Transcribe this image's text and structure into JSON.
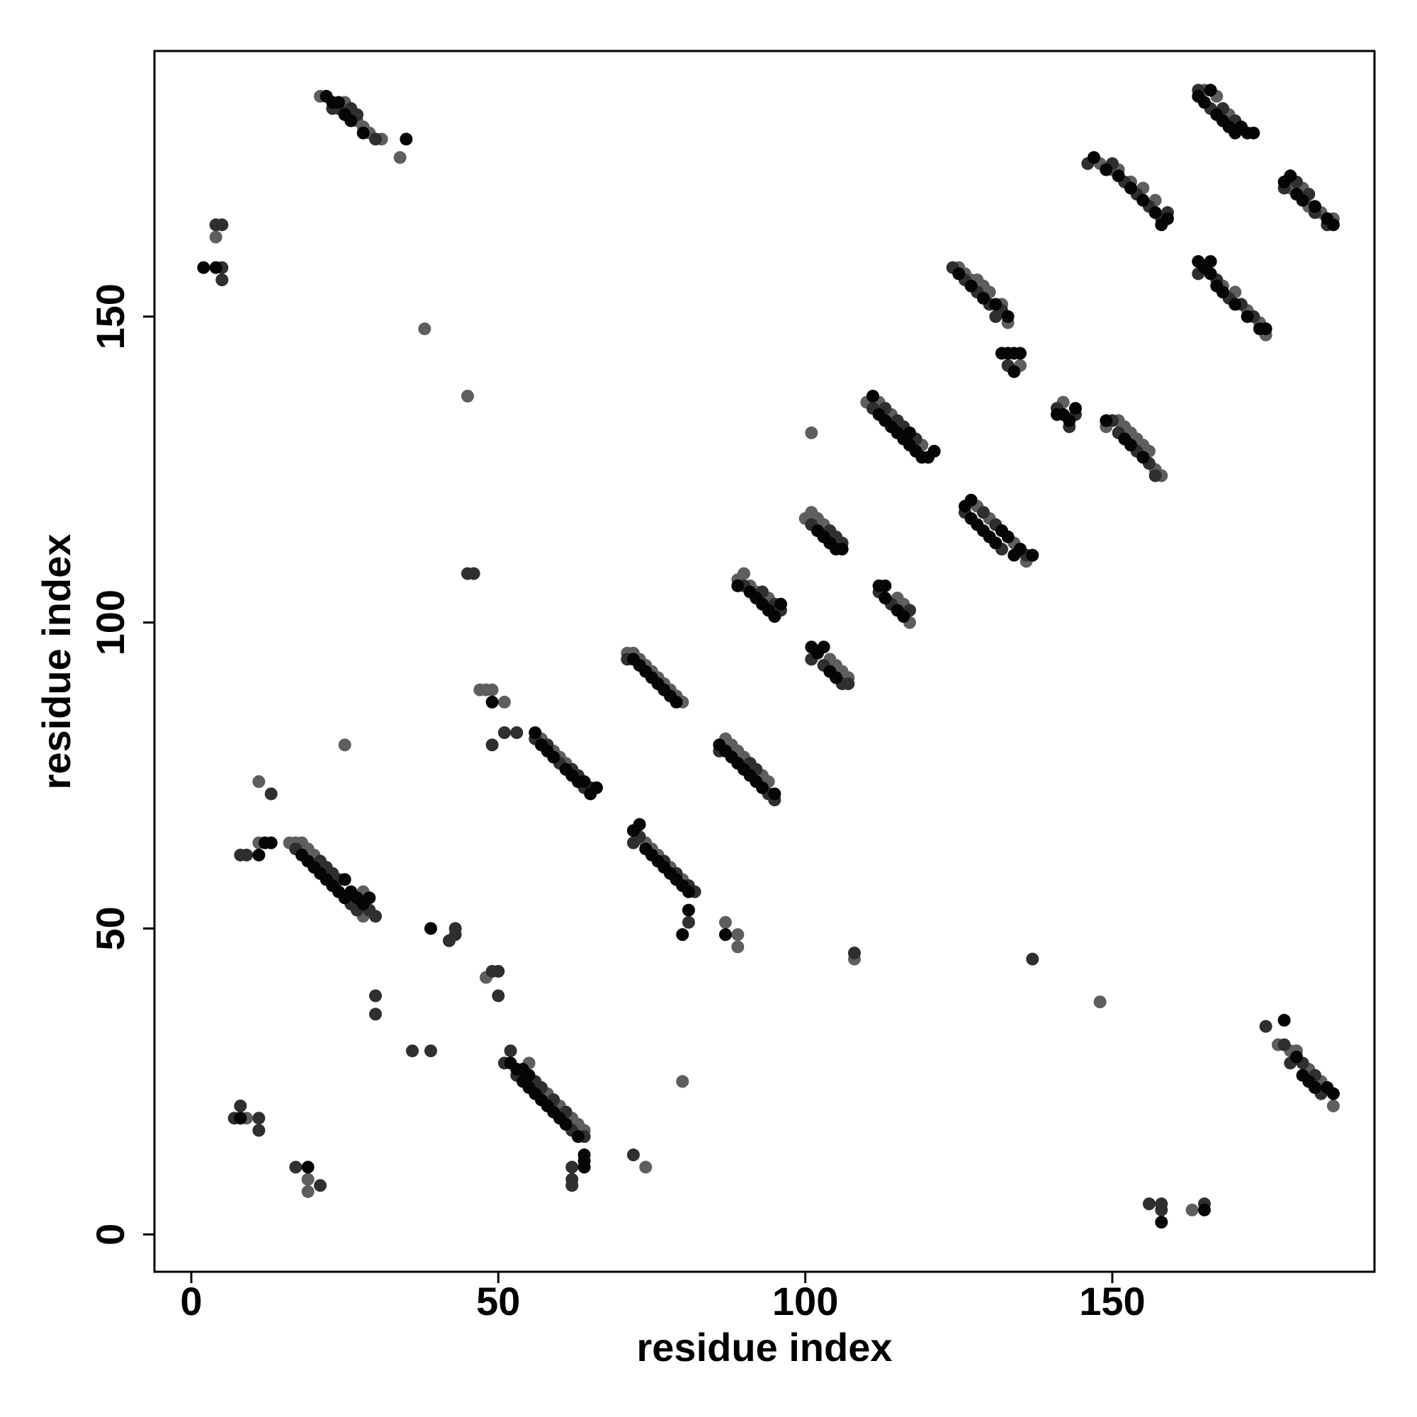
{
  "chart_data": {
    "type": "scatter",
    "x_label": "residue index",
    "y_label": "residue index",
    "xlim": [
      -6,
      192.7
    ],
    "ylim": [
      -6.1,
      193.4
    ],
    "xticks": [
      0,
      50,
      100,
      150
    ],
    "yticks": [
      0,
      50,
      100,
      150
    ],
    "grid": false,
    "series": [
      {
        "color": "#5e5e5e",
        "x": [
          21,
          25,
          27,
          28,
          29,
          31,
          34,
          4,
          38,
          45,
          47,
          48,
          49,
          51,
          57,
          59,
          60,
          61,
          71,
          72,
          73,
          74,
          75,
          76,
          77,
          78,
          79,
          80,
          74,
          75,
          76,
          78,
          80,
          87,
          89,
          89,
          87,
          88,
          89,
          90,
          93,
          94,
          89,
          90,
          91,
          92,
          94,
          100,
          101,
          102,
          103,
          104,
          105,
          106,
          107,
          101,
          108,
          110,
          112,
          114,
          119,
          115,
          116,
          117,
          128,
          130,
          134,
          136,
          125,
          126,
          127,
          128,
          129,
          130,
          132,
          133,
          135,
          142,
          148,
          149,
          151,
          152,
          153,
          154,
          155,
          156,
          157,
          158,
          148,
          150,
          151,
          153,
          155,
          157,
          165,
          167,
          169,
          168,
          170,
          172,
          174,
          175,
          179,
          181,
          182,
          184,
          186,
          177,
          179,
          180,
          182,
          184,
          186,
          163,
          16,
          17,
          18,
          19,
          20,
          28,
          28,
          11,
          11,
          25,
          9,
          19,
          19,
          48,
          55,
          58,
          60,
          62,
          63,
          64,
          74,
          80
        ],
        "values": [
          186,
          185,
          182,
          181,
          180,
          179,
          176,
          163,
          148,
          137,
          89,
          89,
          89,
          87,
          81,
          79,
          78,
          77,
          95,
          95,
          94,
          93,
          92,
          91,
          90,
          89,
          88,
          87,
          64,
          63,
          62,
          60,
          58,
          51,
          49,
          47,
          81,
          80,
          79,
          78,
          75,
          74,
          107,
          108,
          106,
          105,
          104,
          117,
          118,
          117,
          116,
          94,
          93,
          92,
          91,
          131,
          45,
          136,
          136,
          134,
          129,
          104,
          103,
          100,
          119,
          117,
          113,
          110,
          158,
          157,
          156,
          156,
          155,
          154,
          152,
          149,
          142,
          136,
          38,
          132,
          133,
          132,
          131,
          130,
          129,
          128,
          125,
          124,
          175,
          174,
          174,
          172,
          171,
          169,
          187,
          186,
          183,
          155,
          154,
          151,
          149,
          147,
          171,
          171,
          168,
          167,
          166,
          31,
          30,
          30,
          27,
          25,
          21,
          4,
          64,
          64,
          64,
          63,
          62,
          56,
          52,
          64,
          74,
          80,
          19,
          9,
          7,
          42,
          28,
          23,
          21,
          19,
          18,
          17,
          11,
          25
        ]
      },
      {
        "color": "#2f2f2f",
        "x": [
          23,
          24,
          26,
          27,
          30,
          5,
          5,
          4,
          5,
          45,
          46,
          49,
          51,
          53,
          56,
          58,
          60,
          62,
          63,
          64,
          65,
          71,
          72,
          73,
          77,
          79,
          81,
          82,
          81,
          86,
          91,
          92,
          94,
          95,
          90,
          93,
          95,
          96,
          101,
          104,
          105,
          106,
          101,
          103,
          106,
          107,
          108,
          111,
          113,
          115,
          116,
          118,
          112,
          114,
          117,
          126,
          129,
          131,
          132,
          136,
          124,
          126,
          128,
          130,
          132,
          131,
          133,
          141,
          143,
          144,
          137,
          150,
          151,
          154,
          156,
          157,
          146,
          150,
          152,
          154,
          156,
          158,
          159,
          164,
          166,
          168,
          170,
          164,
          167,
          169,
          171,
          173,
          178,
          180,
          182,
          183,
          185,
          175,
          178,
          179,
          181,
          183,
          184,
          156,
          158,
          158,
          165,
          17,
          21,
          22,
          23,
          24,
          26,
          27,
          29,
          30,
          8,
          9,
          13,
          7,
          8,
          11,
          11,
          17,
          21,
          30,
          30,
          36,
          39,
          42,
          43,
          43,
          49,
          50,
          50,
          51,
          52,
          53,
          56,
          57,
          59,
          61,
          62,
          64,
          62,
          62,
          62,
          72
        ],
        "values": [
          184,
          184,
          184,
          183,
          179,
          158,
          156,
          165,
          165,
          108,
          108,
          80,
          82,
          82,
          81,
          80,
          77,
          76,
          75,
          73,
          73,
          94,
          64,
          65,
          61,
          59,
          57,
          56,
          51,
          79,
          77,
          76,
          72,
          71,
          106,
          105,
          103,
          102,
          116,
          115,
          114,
          113,
          94,
          93,
          90,
          90,
          46,
          135,
          135,
          133,
          132,
          130,
          105,
          103,
          102,
          118,
          118,
          116,
          112,
          111,
          158,
          156,
          154,
          152,
          151,
          150,
          142,
          135,
          132,
          134,
          45,
          133,
          131,
          128,
          126,
          124,
          175,
          175,
          172,
          170,
          168,
          166,
          167,
          187,
          184,
          184,
          182,
          157,
          156,
          153,
          152,
          150,
          171,
          172,
          170,
          167,
          165,
          34,
          31,
          28,
          28,
          26,
          23,
          5,
          5,
          4,
          5,
          63,
          61,
          60,
          59,
          58,
          54,
          53,
          53,
          52,
          62,
          62,
          72,
          19,
          21,
          19,
          17,
          11,
          8,
          39,
          36,
          30,
          30,
          48,
          49,
          50,
          43,
          43,
          39,
          28,
          30,
          26,
          25,
          24,
          22,
          20,
          17,
          16,
          11,
          9,
          8,
          13
        ]
      },
      {
        "color": "#050505",
        "x": [
          22,
          23,
          24,
          25,
          26,
          28,
          35,
          2,
          4,
          49,
          56,
          57,
          58,
          59,
          61,
          62,
          63,
          64,
          66,
          65,
          72,
          73,
          74,
          75,
          76,
          77,
          78,
          79,
          72,
          73,
          74,
          75,
          76,
          77,
          78,
          79,
          80,
          81,
          81,
          80,
          87,
          86,
          87,
          88,
          89,
          90,
          91,
          92,
          93,
          95,
          89,
          91,
          92,
          93,
          94,
          96,
          95,
          102,
          103,
          104,
          105,
          106,
          101,
          102,
          103,
          104,
          105,
          111,
          112,
          113,
          114,
          115,
          116,
          117,
          117,
          118,
          119,
          120,
          121,
          112,
          113,
          113,
          115,
          116,
          126,
          127,
          127,
          128,
          129,
          130,
          131,
          132,
          133,
          134,
          135,
          137,
          125,
          127,
          129,
          131,
          133,
          132,
          133,
          134,
          134,
          135,
          141,
          142,
          144,
          143,
          149,
          152,
          153,
          155,
          147,
          149,
          151,
          153,
          155,
          157,
          159,
          158,
          164,
          165,
          166,
          167,
          168,
          169,
          170,
          171,
          172,
          173,
          164,
          165,
          166,
          166,
          167,
          168,
          170,
          172,
          174,
          175,
          178,
          179,
          180,
          181,
          183,
          185,
          186,
          178,
          180,
          181,
          182,
          183,
          185,
          186,
          158,
          165,
          18,
          19,
          20,
          21,
          22,
          23,
          24,
          25,
          25,
          26,
          27,
          28,
          29,
          11,
          12,
          13,
          8,
          19,
          39,
          52,
          53,
          54,
          54,
          55,
          55,
          56,
          57,
          58,
          59,
          60,
          61,
          63,
          64,
          64,
          64
        ],
        "values": [
          186,
          185,
          185,
          183,
          182,
          180,
          179,
          158,
          158,
          87,
          82,
          80,
          79,
          78,
          76,
          75,
          74,
          74,
          73,
          72,
          94,
          93,
          92,
          91,
          90,
          89,
          88,
          87,
          66,
          67,
          63,
          62,
          61,
          60,
          59,
          58,
          57,
          56,
          53,
          49,
          49,
          80,
          79,
          78,
          77,
          76,
          75,
          74,
          73,
          72,
          106,
          105,
          104,
          103,
          102,
          103,
          101,
          115,
          114,
          113,
          112,
          112,
          96,
          95,
          96,
          92,
          91,
          137,
          134,
          133,
          132,
          131,
          130,
          131,
          129,
          128,
          127,
          127,
          128,
          106,
          106,
          104,
          102,
          101,
          119,
          120,
          117,
          116,
          115,
          114,
          113,
          115,
          114,
          111,
          112,
          111,
          157,
          155,
          153,
          152,
          150,
          144,
          144,
          144,
          141,
          144,
          134,
          134,
          135,
          133,
          133,
          130,
          129,
          127,
          176,
          174,
          173,
          171,
          169,
          167,
          166,
          165,
          186,
          185,
          187,
          183,
          182,
          181,
          180,
          181,
          180,
          180,
          159,
          158,
          159,
          157,
          155,
          154,
          152,
          150,
          148,
          148,
          172,
          173,
          170,
          169,
          168,
          166,
          165,
          35,
          29,
          26,
          25,
          24,
          24,
          23,
          2,
          4,
          62,
          61,
          60,
          59,
          58,
          57,
          56,
          55,
          58,
          56,
          55,
          54,
          55,
          62,
          64,
          64,
          19,
          11,
          50,
          28,
          27,
          27,
          25,
          26,
          24,
          23,
          22,
          21,
          20,
          19,
          18,
          16,
          13,
          12,
          11
        ]
      }
    ]
  }
}
